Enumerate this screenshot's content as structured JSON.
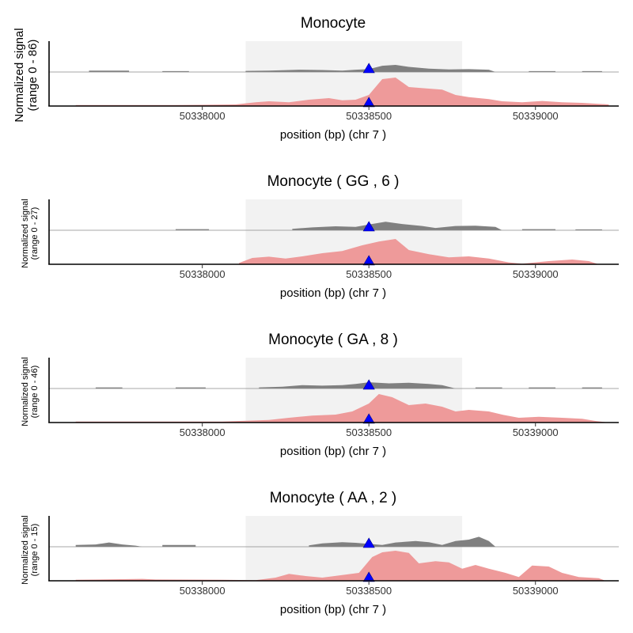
{
  "colors": {
    "highlight": "#f2f2f2",
    "upper_track": "#808080",
    "lower_track": "#ee9a9a",
    "marker": "#0000ff",
    "axis": "#000000"
  },
  "chart_data": [
    {
      "type": "area",
      "title": "Monocyte",
      "ylabel_line1": "Normalized signal",
      "ylabel_line2": "(range 0 - 86)",
      "xlabel": "position (bp) (chr 7 )",
      "xlim": [
        50337540,
        50339250
      ],
      "xticks": [
        "50338000",
        "50338500",
        "50339000"
      ],
      "highlight": [
        50338130,
        50338780
      ],
      "marker_x": 50338500,
      "series": [
        {
          "points": [
            [
              50337660,
              0
            ],
            [
              50337660,
              0.05
            ],
            [
              50337780,
              0.05
            ],
            [
              50337780,
              0
            ],
            [
              50337880,
              0
            ],
            [
              50337880,
              0.03
            ],
            [
              50337960,
              0.03
            ],
            [
              50337960,
              0
            ],
            [
              50338130,
              0
            ],
            [
              50338130,
              0.04
            ],
            [
              50338200,
              0.05
            ],
            [
              50338290,
              0.08
            ],
            [
              50338360,
              0.07
            ],
            [
              50338420,
              0.05
            ],
            [
              50338460,
              0.08
            ],
            [
              50338500,
              0.1
            ],
            [
              50338540,
              0.22
            ],
            [
              50338580,
              0.25
            ],
            [
              50338620,
              0.18
            ],
            [
              50338680,
              0.12
            ],
            [
              50338740,
              0.09
            ],
            [
              50338800,
              0.1
            ],
            [
              50338860,
              0.08
            ],
            [
              50338880,
              0
            ],
            [
              50338980,
              0
            ],
            [
              50338980,
              0.03
            ],
            [
              50339060,
              0.03
            ],
            [
              50339060,
              0
            ],
            [
              50339140,
              0
            ],
            [
              50339140,
              0.03
            ],
            [
              50339200,
              0.03
            ],
            [
              50339200,
              0
            ]
          ]
        },
        {
          "points": [
            [
              50337620,
              0
            ],
            [
              50337620,
              0.03
            ],
            [
              50337920,
              0.03
            ],
            [
              50338020,
              0.04
            ],
            [
              50338100,
              0.05
            ],
            [
              50338160,
              0.12
            ],
            [
              50338200,
              0.15
            ],
            [
              50338260,
              0.12
            ],
            [
              50338320,
              0.2
            ],
            [
              50338380,
              0.25
            ],
            [
              50338420,
              0.18
            ],
            [
              50338460,
              0.2
            ],
            [
              50338500,
              0.35
            ],
            [
              50338540,
              0.85
            ],
            [
              50338580,
              0.9
            ],
            [
              50338620,
              0.6
            ],
            [
              50338680,
              0.55
            ],
            [
              50338720,
              0.52
            ],
            [
              50338760,
              0.35
            ],
            [
              50338800,
              0.28
            ],
            [
              50338860,
              0.22
            ],
            [
              50338900,
              0.15
            ],
            [
              50338960,
              0.12
            ],
            [
              50339020,
              0.16
            ],
            [
              50339080,
              0.12
            ],
            [
              50339140,
              0.1
            ],
            [
              50339220,
              0.05
            ],
            [
              50339220,
              0
            ]
          ]
        }
      ]
    },
    {
      "type": "area",
      "title": "Monocyte ( GG , 6 )",
      "ylabel_line1": "Normalized signal",
      "ylabel_line2": "(range 0 - 27)",
      "xlabel": "position (bp) (chr 7 )",
      "xlim": [
        50337540,
        50339250
      ],
      "xticks": [
        "50338000",
        "50338500",
        "50339000"
      ],
      "highlight": [
        50338130,
        50338780
      ],
      "marker_x": 50338500,
      "series": [
        {
          "points": [
            [
              50337920,
              0
            ],
            [
              50337920,
              0.04
            ],
            [
              50338020,
              0.04
            ],
            [
              50338020,
              0
            ],
            [
              50338270,
              0
            ],
            [
              50338270,
              0.05
            ],
            [
              50338330,
              0.1
            ],
            [
              50338400,
              0.14
            ],
            [
              50338460,
              0.12
            ],
            [
              50338500,
              0.2
            ],
            [
              50338550,
              0.3
            ],
            [
              50338600,
              0.22
            ],
            [
              50338660,
              0.15
            ],
            [
              50338700,
              0.08
            ],
            [
              50338760,
              0.15
            ],
            [
              50338820,
              0.16
            ],
            [
              50338880,
              0.12
            ],
            [
              50338900,
              0
            ],
            [
              50338960,
              0
            ],
            [
              50338960,
              0.04
            ],
            [
              50339060,
              0.04
            ],
            [
              50339060,
              0
            ],
            [
              50339120,
              0
            ],
            [
              50339120,
              0.03
            ],
            [
              50339200,
              0.03
            ],
            [
              50339200,
              0
            ]
          ]
        },
        {
          "points": [
            [
              50338110,
              0
            ],
            [
              50338110,
              0.04
            ],
            [
              50338150,
              0.2
            ],
            [
              50338200,
              0.24
            ],
            [
              50338250,
              0.18
            ],
            [
              50338300,
              0.25
            ],
            [
              50338360,
              0.35
            ],
            [
              50338420,
              0.42
            ],
            [
              50338480,
              0.6
            ],
            [
              50338530,
              0.72
            ],
            [
              50338580,
              0.8
            ],
            [
              50338620,
              0.45
            ],
            [
              50338680,
              0.32
            ],
            [
              50338740,
              0.22
            ],
            [
              50338800,
              0.25
            ],
            [
              50338860,
              0.18
            ],
            [
              50338920,
              0.06
            ],
            [
              50338960,
              0.02
            ],
            [
              50339040,
              0.1
            ],
            [
              50339110,
              0.15
            ],
            [
              50339160,
              0.1
            ],
            [
              50339190,
              0
            ]
          ]
        }
      ]
    },
    {
      "type": "area",
      "title": "Monocyte ( GA , 8 )",
      "ylabel_line1": "Normalized signal",
      "ylabel_line2": "(range 0 - 46)",
      "xlabel": "position (bp) (chr 7 )",
      "xlim": [
        50337540,
        50339250
      ],
      "xticks": [
        "50338000",
        "50338500",
        "50339000"
      ],
      "highlight": [
        50338130,
        50338780
      ],
      "marker_x": 50338500,
      "series": [
        {
          "points": [
            [
              50337680,
              0
            ],
            [
              50337680,
              0.04
            ],
            [
              50337760,
              0.04
            ],
            [
              50337760,
              0
            ],
            [
              50337920,
              0
            ],
            [
              50337920,
              0.04
            ],
            [
              50338010,
              0.04
            ],
            [
              50338010,
              0
            ],
            [
              50338170,
              0
            ],
            [
              50338170,
              0.04
            ],
            [
              50338240,
              0.06
            ],
            [
              50338300,
              0.12
            ],
            [
              50338360,
              0.1
            ],
            [
              50338420,
              0.12
            ],
            [
              50338460,
              0.16
            ],
            [
              50338500,
              0.22
            ],
            [
              50338560,
              0.18
            ],
            [
              50338620,
              0.2
            ],
            [
              50338680,
              0.16
            ],
            [
              50338720,
              0.12
            ],
            [
              50338760,
              0
            ],
            [
              50338820,
              0
            ],
            [
              50338820,
              0.04
            ],
            [
              50338900,
              0.04
            ],
            [
              50338900,
              0
            ],
            [
              50338980,
              0
            ],
            [
              50338980,
              0.04
            ],
            [
              50339060,
              0.04
            ],
            [
              50339060,
              0
            ],
            [
              50339140,
              0
            ],
            [
              50339140,
              0.04
            ],
            [
              50339200,
              0.04
            ],
            [
              50339200,
              0
            ]
          ]
        },
        {
          "points": [
            [
              50337620,
              0
            ],
            [
              50337620,
              0.03
            ],
            [
              50338060,
              0.03
            ],
            [
              50338200,
              0.08
            ],
            [
              50338260,
              0.15
            ],
            [
              50338330,
              0.22
            ],
            [
              50338400,
              0.25
            ],
            [
              50338450,
              0.35
            ],
            [
              50338500,
              0.6
            ],
            [
              50338530,
              0.9
            ],
            [
              50338570,
              0.8
            ],
            [
              50338620,
              0.55
            ],
            [
              50338670,
              0.6
            ],
            [
              50338720,
              0.5
            ],
            [
              50338760,
              0.35
            ],
            [
              50338800,
              0.4
            ],
            [
              50338860,
              0.35
            ],
            [
              50338900,
              0.25
            ],
            [
              50338950,
              0.15
            ],
            [
              50339010,
              0.18
            ],
            [
              50339080,
              0.15
            ],
            [
              50339140,
              0.12
            ],
            [
              50339180,
              0.05
            ],
            [
              50339220,
              0
            ]
          ]
        }
      ]
    },
    {
      "type": "area",
      "title": "Monocyte ( AA , 2 )",
      "ylabel_line1": "Normalized signal",
      "ylabel_line2": "(range 0 - 15)",
      "xlabel": "position (bp) (chr 7 )",
      "xlim": [
        50337540,
        50339250
      ],
      "xticks": [
        "50338000",
        "50338500",
        "50339000"
      ],
      "highlight": [
        50338130,
        50338780
      ],
      "marker_x": 50338500,
      "series": [
        {
          "points": [
            [
              50337620,
              0
            ],
            [
              50337620,
              0.06
            ],
            [
              50337680,
              0.08
            ],
            [
              50337720,
              0.15
            ],
            [
              50337760,
              0.08
            ],
            [
              50337800,
              0.04
            ],
            [
              50337820,
              0
            ],
            [
              50337880,
              0
            ],
            [
              50337880,
              0.06
            ],
            [
              50337980,
              0.06
            ],
            [
              50337980,
              0
            ],
            [
              50338320,
              0
            ],
            [
              50338320,
              0.05
            ],
            [
              50338360,
              0.12
            ],
            [
              50338420,
              0.16
            ],
            [
              50338460,
              0.14
            ],
            [
              50338500,
              0.1
            ],
            [
              50338540,
              0.06
            ],
            [
              50338580,
              0.15
            ],
            [
              50338640,
              0.2
            ],
            [
              50338680,
              0.16
            ],
            [
              50338720,
              0.06
            ],
            [
              50338760,
              0.2
            ],
            [
              50338800,
              0.25
            ],
            [
              50338830,
              0.35
            ],
            [
              50338860,
              0.2
            ],
            [
              50338880,
              0
            ]
          ]
        },
        {
          "points": [
            [
              50337620,
              0
            ],
            [
              50337620,
              0.03
            ],
            [
              50337820,
              0.06
            ],
            [
              50337860,
              0.04
            ],
            [
              50338060,
              0.03
            ],
            [
              50338160,
              0.02
            ],
            [
              50338220,
              0.1
            ],
            [
              50338260,
              0.22
            ],
            [
              50338310,
              0.15
            ],
            [
              50338360,
              0.1
            ],
            [
              50338420,
              0.18
            ],
            [
              50338470,
              0.25
            ],
            [
              50338510,
              0.75
            ],
            [
              50338540,
              0.9
            ],
            [
              50338580,
              0.95
            ],
            [
              50338620,
              0.88
            ],
            [
              50338650,
              0.55
            ],
            [
              50338700,
              0.62
            ],
            [
              50338740,
              0.58
            ],
            [
              50338780,
              0.38
            ],
            [
              50338820,
              0.5
            ],
            [
              50338860,
              0.38
            ],
            [
              50338910,
              0.25
            ],
            [
              50338950,
              0.12
            ],
            [
              50338990,
              0.48
            ],
            [
              50339040,
              0.45
            ],
            [
              50339080,
              0.25
            ],
            [
              50339130,
              0.12
            ],
            [
              50339190,
              0.08
            ],
            [
              50339210,
              0
            ]
          ]
        }
      ]
    }
  ]
}
